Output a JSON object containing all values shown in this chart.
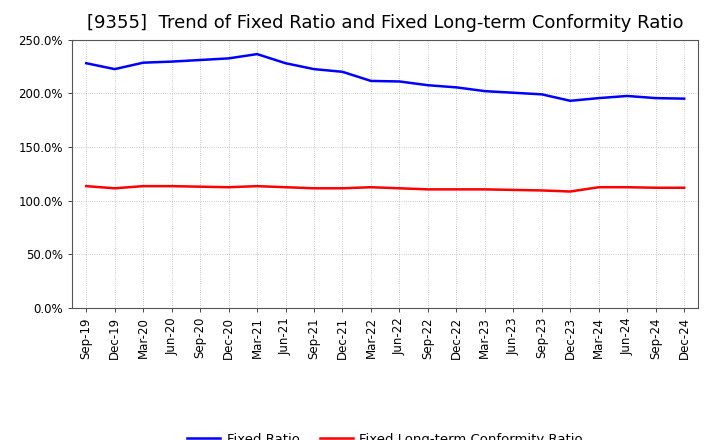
{
  "title": "[9355]  Trend of Fixed Ratio and Fixed Long-term Conformity Ratio",
  "x_labels": [
    "Sep-19",
    "Dec-19",
    "Mar-20",
    "Jun-20",
    "Sep-20",
    "Dec-20",
    "Mar-21",
    "Jun-21",
    "Sep-21",
    "Dec-21",
    "Mar-22",
    "Jun-22",
    "Sep-22",
    "Dec-22",
    "Mar-23",
    "Jun-23",
    "Sep-23",
    "Dec-23",
    "Mar-24",
    "Jun-24",
    "Sep-24",
    "Dec-24"
  ],
  "fixed_ratio": [
    228.0,
    222.5,
    228.5,
    229.5,
    231.0,
    232.5,
    236.5,
    228.0,
    222.5,
    220.0,
    211.5,
    211.0,
    207.5,
    205.5,
    202.0,
    200.5,
    199.0,
    193.0,
    195.5,
    197.5,
    195.5,
    195.0
  ],
  "fixed_lt_ratio": [
    113.5,
    111.5,
    113.5,
    113.5,
    113.0,
    112.5,
    113.5,
    112.5,
    111.5,
    111.5,
    112.5,
    111.5,
    110.5,
    110.5,
    110.5,
    110.0,
    109.5,
    108.5,
    112.5,
    112.5,
    112.0,
    112.0
  ],
  "fixed_ratio_color": "#0000FF",
  "fixed_lt_ratio_color": "#FF0000",
  "background_color": "#FFFFFF",
  "plot_bg_color": "#FFFFFF",
  "grid_color": "#888888",
  "ylim": [
    0,
    250
  ],
  "yticks": [
    0,
    50,
    100,
    150,
    200,
    250
  ],
  "ytick_labels": [
    "0.0%",
    "50.0%",
    "100.0%",
    "150.0%",
    "200.0%",
    "250.0%"
  ],
  "legend_fixed_ratio": "Fixed Ratio",
  "legend_fixed_lt": "Fixed Long-term Conformity Ratio",
  "title_fontsize": 13,
  "axis_fontsize": 8.5,
  "legend_fontsize": 9.5,
  "line_width": 1.8
}
